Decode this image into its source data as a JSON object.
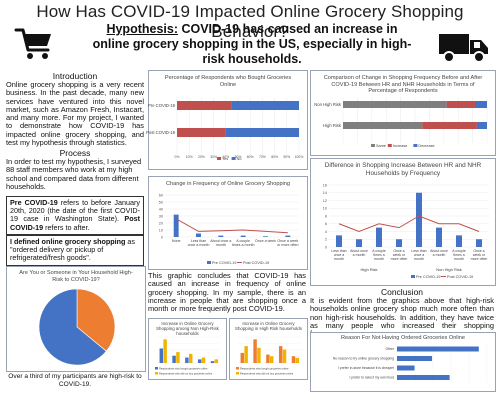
{
  "title": "How Has COVID-19 Impacted Online Grocery Shopping Behavior?",
  "hypothesis": {
    "lead": "Hypothesis:",
    "text": " COVID-19 has caused an increase in online grocery shopping in the US, especially in high-risk households."
  },
  "introduction": {
    "heading": "Introduction",
    "text": "Online grocery shopping is a very recent business. In the past decade, many new services have ventured into this novel market, such as Amazon Fresh, Instacart, and many more. For my project, I wanted to demonstrate how COVID-19 has impacted online grocery shopping, and test my hypothesis through statistics."
  },
  "process": {
    "heading": "Process",
    "text": "In order to test my hypothesis, I surveyed 88 staff members who work at my high school and compared data from different households."
  },
  "pre_post_box": {
    "part1": "Pre COVID-19",
    "part2": " refers to before January 20th, 2020 (the date of the first COVID-19 case in Washington State). ",
    "part3": "Post COVID-19",
    "part4": " refers to after."
  },
  "defined_box": {
    "part1": "I defined online grocery shopping",
    "part2": " as \"ordered delivery or pickup of refrigerated/fresh goods\"."
  },
  "pie_caption": "Over a third of my participants are high-risk to COVID-19.",
  "graphic_text": "This graphic concludes that COVID-19 has caused an increase in frequency of online grocery shopping. In my sample, there is an increase in people that are shopping once a month or more frequently post COVID-19.",
  "conclusion": {
    "heading": "Conclusion",
    "text": "It is evident from the graphics above that high-risk households online grocery shop much more often than non high-risk households. In addition, they have twice as many people who increased their shopping frequency."
  },
  "colors": {
    "blue": "#4472c4",
    "red": "#c0504d",
    "orange": "#ed7d31",
    "yellow": "#f0b400"
  },
  "icons": [
    "shopping-cart-icon",
    "delivery-truck-icon"
  ],
  "chart_data": [
    {
      "type": "bar",
      "title": "Percentage of Respondents who Bought Groceries Online",
      "categories": [
        "Pre COVID-19",
        "Post COVID-19"
      ],
      "stacked": true,
      "series": [
        {
          "name": "Yes",
          "color": "#c0504d",
          "values": [
            45,
            40
          ]
        },
        {
          "name": "No",
          "color": "#4472c4",
          "values": [
            55,
            60
          ]
        }
      ],
      "xlim": [
        0,
        100
      ],
      "xticks": [
        "0%",
        "10%",
        "20%",
        "30%",
        "40%",
        "50%",
        "60%",
        "70%",
        "80%",
        "90%",
        "100%"
      ]
    },
    {
      "type": "bar",
      "title": "Comparison of Change in Shopping Frequency Before and After COVID-19 Between HR and NHR Households in Terms of Percentage of Respondents",
      "categories": [
        "Non High Risk",
        "High Risk"
      ],
      "stacked": true,
      "series": [
        {
          "name": "Same",
          "color": "#7f7f7f",
          "values": [
            72,
            55
          ]
        },
        {
          "name": "Increase",
          "color": "#c0504d",
          "values": [
            20,
            38
          ]
        },
        {
          "name": "Decrease",
          "color": "#4472c4",
          "values": [
            8,
            7
          ]
        }
      ],
      "xlim": [
        0,
        100
      ]
    },
    {
      "type": "bar",
      "title": "Change in Frequency of Online Grocery Shopping",
      "categories": [
        "None",
        "Less than once a month",
        "About once a month",
        "A couple times a month",
        "Once a week",
        "Once a week or more often"
      ],
      "series": [
        {
          "name": "Pre COVID-19",
          "color": "#4472c4",
          "values": [
            32,
            5,
            2,
            2,
            1,
            2
          ]
        },
        {
          "name": "Post COVID-19",
          "color": "#c0504d",
          "values": [
            26,
            8,
            9,
            10,
            8,
            6
          ]
        }
      ],
      "ylim": [
        0,
        60
      ],
      "yticks": [
        0,
        10,
        20,
        30,
        40,
        50,
        60
      ]
    },
    {
      "type": "pie",
      "title": "Are You or Someone in Your Household High-Risk to COVID-19?",
      "slices": [
        {
          "label": "Yes",
          "value": 36,
          "color": "#ed7d31"
        },
        {
          "label": "No",
          "value": 64,
          "color": "#4472c4"
        }
      ]
    },
    {
      "type": "bar",
      "title": "Difference in Shopping Increase Between HR and NHR Households by Frequency",
      "categories": [
        "Less than once a month",
        "About once a month",
        "A couple times a month",
        "Once a week or more often",
        "Less than once a month",
        "About once a month",
        "A couple times a month",
        "Once a week or more often"
      ],
      "groups": [
        "High Risk",
        "Non High Risk"
      ],
      "series": [
        {
          "name": "Pre COVID-19",
          "color": "#4472c4",
          "values": [
            3,
            2,
            5,
            2,
            14,
            5,
            3,
            2
          ]
        },
        {
          "name": "Post COVID-19",
          "color": "#c0504d",
          "values": [
            6,
            4,
            6,
            5,
            8,
            6,
            6,
            4
          ]
        }
      ],
      "ylim": [
        0,
        16
      ],
      "yticks": [
        0,
        2,
        4,
        6,
        8,
        10,
        12,
        14,
        16
      ]
    },
    {
      "type": "bar",
      "title": "Increase in Online Grocery Shopping among Non High-Risk households",
      "categories": [
        "a",
        "b",
        "c",
        "d",
        "e"
      ],
      "series": [
        {
          "name": "Respondents who bought groceries online",
          "color": "#4472c4",
          "values": [
            8,
            4,
            3,
            2,
            1
          ]
        },
        {
          "name": "Respondents who did not buy groceries online",
          "color": "#f0b400",
          "values": [
            13,
            6,
            5,
            3,
            2
          ]
        }
      ]
    },
    {
      "type": "bar",
      "title": "Increase in Online Grocery Shopping in High Risk households",
      "categories": [
        "a",
        "b",
        "c",
        "d",
        "e"
      ],
      "series": [
        {
          "name": "Respondents who bought groceries online",
          "color": "#ed7d31",
          "values": [
            6,
            14,
            5,
            10,
            4
          ]
        },
        {
          "name": "Respondents who did not buy groceries online",
          "color": "#f0b400",
          "values": [
            10,
            9,
            4,
            8,
            3
          ]
        }
      ]
    },
    {
      "type": "bar",
      "title": "Reason For Not Having Ordered Groceries Online",
      "orientation": "horizontal",
      "categories": [
        "Other",
        "No reason to try online grocery shopping",
        "I prefer in-store because it is cheaper",
        "I prefer to select my own food"
      ],
      "series": [
        {
          "name": "Respondents",
          "color": "#4472c4",
          "values": [
            14,
            6,
            3,
            9
          ]
        }
      ]
    }
  ]
}
